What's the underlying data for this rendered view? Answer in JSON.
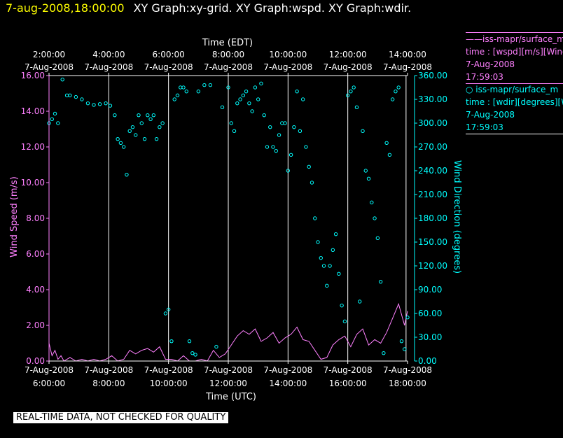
{
  "header": {
    "datetime": "7-aug-2008,18:00:00",
    "graphs": "XY Graph:xy-grid.  XY Graph:wspd.  XY Graph:wdir."
  },
  "legend": [
    {
      "line1": "——iss-mapr/surface_m",
      "line2": "time : [wspd][m/s][Wind",
      "line3": "7-Aug-2008",
      "line4": "17:59:03"
    },
    {
      "line1": "○  iss-mapr/surface_m",
      "line2": "time : [wdir][degrees][W",
      "line3": "7-Aug-2008",
      "line4": "17:59:03"
    }
  ],
  "note": "REAL-TIME DATA, NOT CHECKED FOR QUALITY",
  "colors": {
    "wspd": "#ff80ff",
    "wdir": "#00ffff",
    "grid": "#ffffff",
    "date": "#ffff00"
  },
  "chart_data": {
    "type": "scatter",
    "top_axis": {
      "label": "Time (EDT)",
      "ticks": [
        {
          "hour": 6,
          "time": "2:00:00",
          "date": "7-Aug-2008"
        },
        {
          "hour": 8,
          "time": "4:00:00",
          "date": "7-Aug-2008"
        },
        {
          "hour": 10,
          "time": "6:00:00",
          "date": "7-Aug-2008"
        },
        {
          "hour": 12,
          "time": "8:00:00",
          "date": "7-Aug-2008"
        },
        {
          "hour": 14,
          "time": "10:00:00",
          "date": "7-Aug-2008"
        },
        {
          "hour": 16,
          "time": "12:00:00",
          "date": "7-Aug-2008"
        },
        {
          "hour": 18,
          "time": "14:00:00",
          "date": "7-Aug-2008"
        }
      ]
    },
    "bottom_axis": {
      "label": "Time (UTC)",
      "ticks": [
        {
          "hour": 6,
          "date": "7-Aug-2008",
          "time": "6:00:00"
        },
        {
          "hour": 8,
          "date": "7-Aug-2008",
          "time": "8:00:00"
        },
        {
          "hour": 10,
          "date": "7-Aug-2008",
          "time": "10:00:00"
        },
        {
          "hour": 12,
          "date": "7-Aug-2008",
          "time": "12:00:00"
        },
        {
          "hour": 14,
          "date": "7-Aug-2008",
          "time": "14:00:00"
        },
        {
          "hour": 16,
          "date": "7-Aug-2008",
          "time": "16:00:00"
        },
        {
          "hour": 18,
          "date": "7-Aug-2008",
          "time": "18:00:00"
        }
      ]
    },
    "xlim": [
      6,
      18
    ],
    "gridlines": [
      8,
      10,
      12,
      14,
      16,
      17.95
    ],
    "left_axis": {
      "label": "Wind Speed (m/s)",
      "ylim": [
        0,
        16
      ],
      "ticks": [
        {
          "v": 0,
          "t": "0.00"
        },
        {
          "v": 2,
          "t": "2.00"
        },
        {
          "v": 4,
          "t": "4.00"
        },
        {
          "v": 6,
          "t": "6.00"
        },
        {
          "v": 8,
          "t": "8.00"
        },
        {
          "v": 10,
          "t": "10.00"
        },
        {
          "v": 12,
          "t": "12.00"
        },
        {
          "v": 14,
          "t": "14.00"
        },
        {
          "v": 16,
          "t": "16.00"
        }
      ]
    },
    "right_axis": {
      "label": "Wind Direction (degrees)",
      "ylim": [
        0,
        360
      ],
      "ticks": [
        {
          "v": 0,
          "t": "0.00"
        },
        {
          "v": 30,
          "t": "30.00"
        },
        {
          "v": 60,
          "t": "60.00"
        },
        {
          "v": 90,
          "t": "90.00"
        },
        {
          "v": 120,
          "t": "120.00"
        },
        {
          "v": 150,
          "t": "150.00"
        },
        {
          "v": 180,
          "t": "180.00"
        },
        {
          "v": 210,
          "t": "210.00"
        },
        {
          "v": 240,
          "t": "240.00"
        },
        {
          "v": 270,
          "t": "270.00"
        },
        {
          "v": 300,
          "t": "300.00"
        },
        {
          "v": 330,
          "t": "330.00"
        },
        {
          "v": 360,
          "t": "360.00"
        }
      ]
    },
    "wspd": {
      "x": [
        6.0,
        6.1,
        6.2,
        6.3,
        6.4,
        6.5,
        6.7,
        6.9,
        7.1,
        7.3,
        7.5,
        7.7,
        7.9,
        8.1,
        8.3,
        8.5,
        8.7,
        8.9,
        9.1,
        9.3,
        9.5,
        9.7,
        9.9,
        10.1,
        10.3,
        10.5,
        10.7,
        10.9,
        11.1,
        11.3,
        11.5,
        11.7,
        11.9,
        12.1,
        12.3,
        12.5,
        12.7,
        12.9,
        13.1,
        13.3,
        13.5,
        13.7,
        13.9,
        14.1,
        14.3,
        14.5,
        14.7,
        14.9,
        15.1,
        15.3,
        15.5,
        15.7,
        15.9,
        16.1,
        16.3,
        16.5,
        16.7,
        16.9,
        17.1,
        17.3,
        17.5,
        17.7,
        17.9,
        18.0
      ],
      "y": [
        1.0,
        0.3,
        0.6,
        0.1,
        0.3,
        0.0,
        0.2,
        0.0,
        0.1,
        0.0,
        0.1,
        0.0,
        0.1,
        0.3,
        0.0,
        0.1,
        0.6,
        0.4,
        0.6,
        0.7,
        0.5,
        0.8,
        0.1,
        0.1,
        0.0,
        0.3,
        0.0,
        0.0,
        0.1,
        0.0,
        0.6,
        0.2,
        0.4,
        0.9,
        1.4,
        1.7,
        1.5,
        1.8,
        1.1,
        1.3,
        1.6,
        1.0,
        1.3,
        1.5,
        1.9,
        1.2,
        1.1,
        0.6,
        0.1,
        0.2,
        0.9,
        1.2,
        1.4,
        0.8,
        1.5,
        1.8,
        0.9,
        1.2,
        1.0,
        1.6,
        2.4,
        3.2,
        2.0,
        2.8
      ]
    },
    "wdir": {
      "x": [
        6.0,
        6.1,
        6.2,
        6.3,
        6.45,
        6.6,
        6.7,
        6.9,
        7.1,
        7.3,
        7.5,
        7.7,
        7.9,
        8.05,
        8.2,
        8.3,
        8.4,
        8.5,
        8.6,
        8.7,
        8.8,
        8.9,
        9.0,
        9.1,
        9.2,
        9.3,
        9.4,
        9.5,
        9.6,
        9.7,
        9.8,
        9.9,
        10.0,
        10.1,
        10.2,
        10.3,
        10.4,
        10.5,
        10.6,
        10.7,
        10.8,
        10.9,
        11.0,
        11.2,
        11.4,
        11.6,
        11.8,
        12.0,
        12.1,
        12.2,
        12.3,
        12.4,
        12.5,
        12.6,
        12.7,
        12.8,
        12.9,
        13.0,
        13.1,
        13.2,
        13.3,
        13.4,
        13.5,
        13.6,
        13.7,
        13.8,
        13.9,
        14.0,
        14.1,
        14.2,
        14.3,
        14.4,
        14.5,
        14.6,
        14.7,
        14.8,
        14.9,
        15.0,
        15.1,
        15.2,
        15.3,
        15.4,
        15.5,
        15.6,
        15.7,
        15.8,
        15.9,
        16.0,
        16.1,
        16.2,
        16.3,
        16.4,
        16.5,
        16.6,
        16.7,
        16.8,
        16.9,
        17.0,
        17.1,
        17.2,
        17.3,
        17.4,
        17.5,
        17.6,
        17.7,
        17.8,
        17.9,
        18.0
      ],
      "y": [
        300,
        305,
        312,
        300,
        355,
        335,
        335,
        333,
        330,
        325,
        323,
        324,
        325,
        322,
        310,
        280,
        275,
        270,
        235,
        290,
        295,
        285,
        310,
        300,
        280,
        310,
        305,
        310,
        280,
        295,
        300,
        60,
        65,
        25,
        330,
        335,
        345,
        345,
        340,
        25,
        10,
        8,
        340,
        348,
        348,
        18,
        320,
        345,
        300,
        290,
        325,
        330,
        335,
        340,
        325,
        315,
        345,
        330,
        350,
        310,
        270,
        295,
        270,
        265,
        285,
        300,
        300,
        240,
        260,
        295,
        340,
        290,
        330,
        270,
        245,
        225,
        180,
        150,
        130,
        120,
        95,
        120,
        140,
        160,
        110,
        70,
        50,
        335,
        340,
        345,
        320,
        75,
        290,
        240,
        230,
        200,
        180,
        155,
        100,
        10,
        275,
        260,
        330,
        340,
        345,
        25,
        15,
        55
      ]
    }
  }
}
